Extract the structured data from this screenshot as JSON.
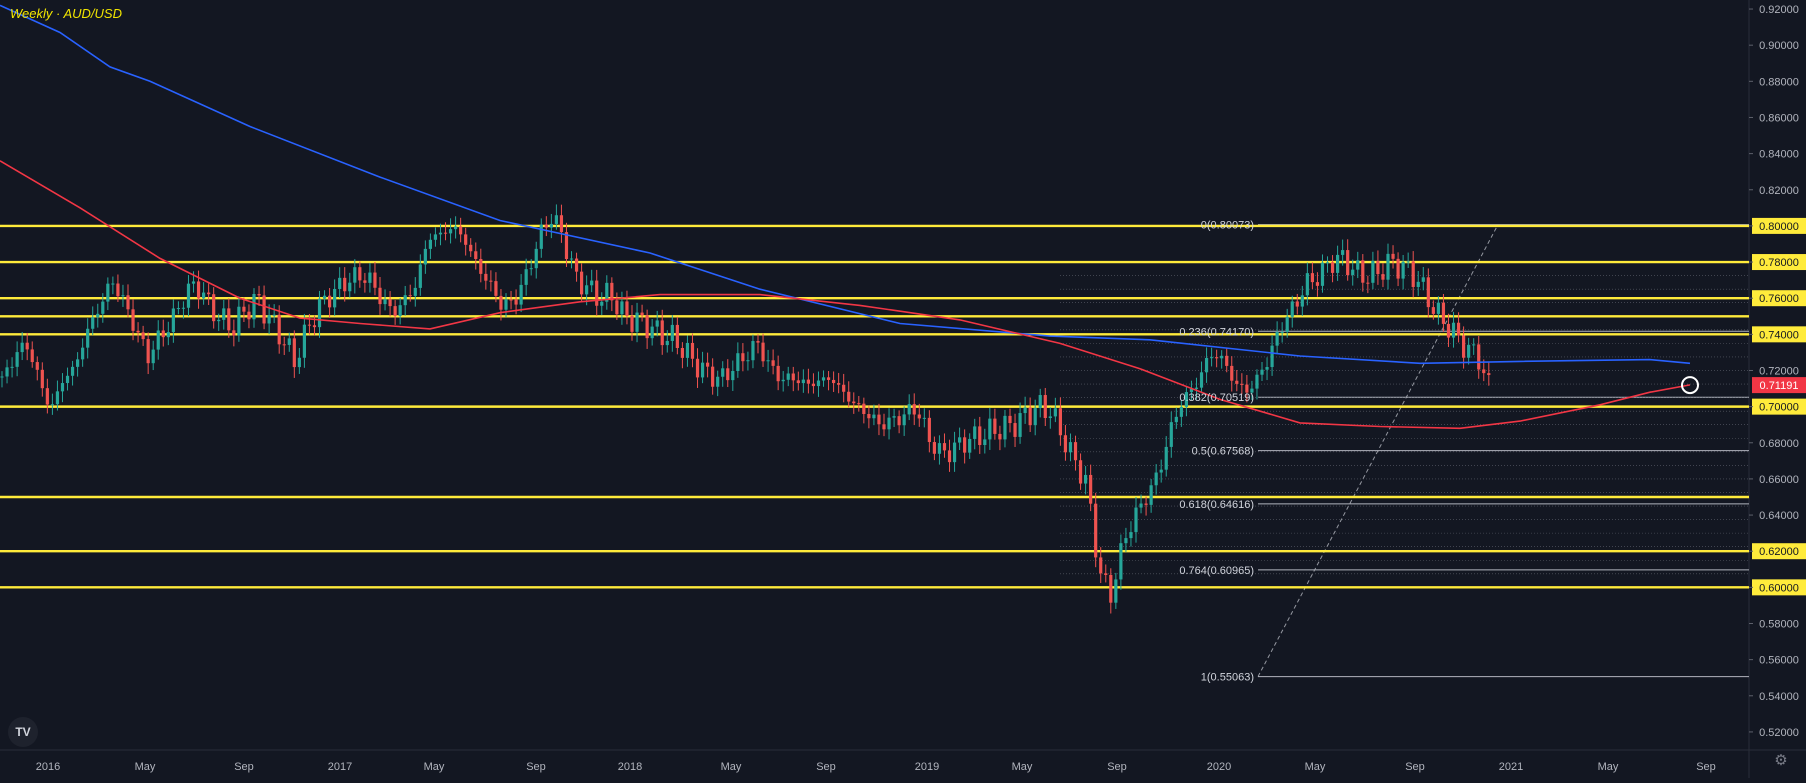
{
  "title": "Weekly · AUD/USD",
  "logo_text": "TV",
  "colors": {
    "background": "#131722",
    "up_candle": "#26a69a",
    "down_candle": "#ef5350",
    "sma_blue": "#2962ff",
    "sma_red": "#f23645",
    "level_line": "#ffeb3b",
    "axis_text": "#b2b5be",
    "fib_text": "#d1d4dc"
  },
  "chart_data": {
    "type": "candlestick",
    "symbol": "AUD/USD",
    "timeframe": "Weekly",
    "last_price": "0.71191",
    "ylim": [
      0.51,
      0.925
    ],
    "y_ticks": [
      "0.92000",
      "0.90000",
      "0.88000",
      "0.86000",
      "0.84000",
      "0.82000",
      "0.80000",
      "0.78000",
      "0.76000",
      "0.74000",
      "0.72000",
      "0.70000",
      "0.68000",
      "0.66000",
      "0.64000",
      "0.62000",
      "0.60000",
      "0.58000",
      "0.56000",
      "0.54000",
      "0.52000"
    ],
    "highlighted_ticks": [
      "0.80000",
      "0.78000",
      "0.76000",
      "0.75000",
      "0.74000",
      "0.70000",
      "0.65000",
      "0.62000",
      "0.60000"
    ],
    "x_ticks": [
      "2016",
      "May",
      "Sep",
      "2017",
      "May",
      "Sep",
      "2018",
      "May",
      "Sep",
      "2019",
      "May",
      "Sep",
      "2020",
      "May",
      "Sep",
      "2021",
      "May",
      "Sep"
    ],
    "horizontal_levels": [
      0.8,
      0.78,
      0.76,
      0.75,
      0.74,
      0.7,
      0.65,
      0.62,
      0.6
    ],
    "fibonacci": {
      "from_price": 0.55063,
      "to_price": 0.80073,
      "levels": [
        {
          "label": "0(0.80073)",
          "price": 0.80073
        },
        {
          "label": "0.236(0.74170)",
          "price": 0.7417
        },
        {
          "label": "0.382(0.70519)",
          "price": 0.70519
        },
        {
          "label": "0.5(0.67568)",
          "price": 0.67568
        },
        {
          "label": "0.618(0.64616)",
          "price": 0.64616
        },
        {
          "label": "0.764(0.60965)",
          "price": 0.60965
        },
        {
          "label": "1(0.55063)",
          "price": 0.55063
        }
      ]
    },
    "price_path": [
      0.714,
      0.728,
      0.735,
      0.716,
      0.698,
      0.715,
      0.722,
      0.742,
      0.755,
      0.77,
      0.758,
      0.742,
      0.728,
      0.739,
      0.748,
      0.762,
      0.768,
      0.756,
      0.748,
      0.744,
      0.754,
      0.759,
      0.748,
      0.738,
      0.725,
      0.742,
      0.755,
      0.762,
      0.768,
      0.772,
      0.772,
      0.761,
      0.752,
      0.758,
      0.768,
      0.794,
      0.795,
      0.8,
      0.792,
      0.778,
      0.768,
      0.756,
      0.758,
      0.772,
      0.792,
      0.806,
      0.795,
      0.772,
      0.766,
      0.76,
      0.762,
      0.75,
      0.748,
      0.745,
      0.74,
      0.738,
      0.731,
      0.723,
      0.718,
      0.715,
      0.722,
      0.728,
      0.735,
      0.722,
      0.715,
      0.716,
      0.712,
      0.714,
      0.716,
      0.708,
      0.701,
      0.696,
      0.69,
      0.692,
      0.695,
      0.7,
      0.683,
      0.674,
      0.676,
      0.681,
      0.683,
      0.686,
      0.688,
      0.69,
      0.695,
      0.7,
      0.698,
      0.684,
      0.67,
      0.658,
      0.61,
      0.595,
      0.625,
      0.64,
      0.651,
      0.665,
      0.69,
      0.705,
      0.712,
      0.728,
      0.728,
      0.715,
      0.708,
      0.715,
      0.728,
      0.745,
      0.755,
      0.768,
      0.772,
      0.78,
      0.782,
      0.775,
      0.772,
      0.775,
      0.78,
      0.777,
      0.772,
      0.76,
      0.749,
      0.742,
      0.733,
      0.729,
      0.712
    ]
  }
}
